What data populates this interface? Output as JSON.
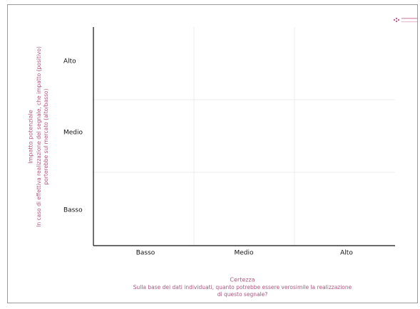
{
  "y_axis": {
    "title": "Impatto potenziale",
    "subtitle_lines": [
      "In caso di effettiva realizzazione del segnale, che impatto (positivo)",
      "porterebbe sul mercato (alto/basso)"
    ],
    "levels": [
      "Alto",
      "Medio",
      "Basso"
    ]
  },
  "x_axis": {
    "title": "Certezza",
    "subtitle_lines": [
      "Sulla base dei dati individuati, quanto potrebbe essere verosimile la realizzazione",
      "di questo segnale?"
    ],
    "levels": [
      "Basso",
      "Medio",
      "Alto"
    ]
  }
}
